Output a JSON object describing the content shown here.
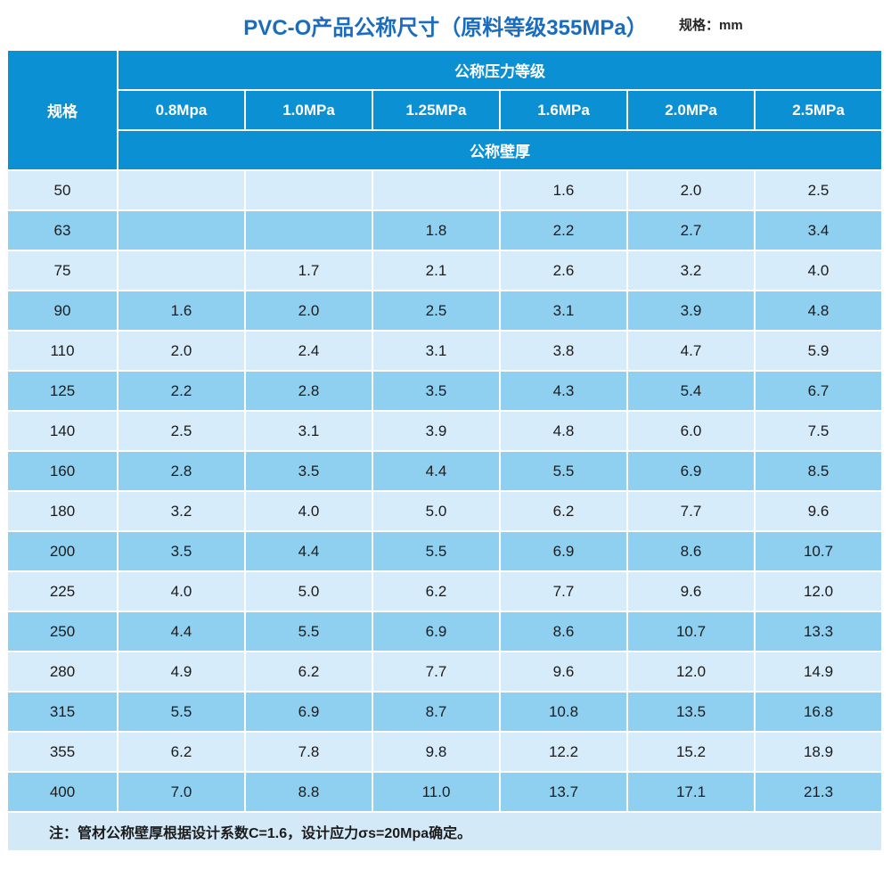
{
  "title": "PVC-O产品公称尺寸（原料等级355MPa）",
  "unit_label": "规格：mm",
  "colors": {
    "title_color": "#1a6cbe",
    "header_bg": "#0b90d4",
    "row_light": "#d7ecfb",
    "row_dark": "#8fd0f1",
    "note_bg": "#d3e9f8"
  },
  "table": {
    "spec_header": "规格",
    "pressure_group_header": "公称压力等级",
    "wall_thickness_header": "公称壁厚",
    "pressure_columns": [
      "0.8Mpa",
      "1.0MPa",
      "1.25MPa",
      "1.6MPa",
      "2.0MPa",
      "2.5MPa"
    ],
    "rows": [
      {
        "spec": "50",
        "values": [
          "",
          "",
          "",
          "1.6",
          "2.0",
          "2.5"
        ]
      },
      {
        "spec": "63",
        "values": [
          "",
          "",
          "1.8",
          "2.2",
          "2.7",
          "3.4"
        ]
      },
      {
        "spec": "75",
        "values": [
          "",
          "1.7",
          "2.1",
          "2.6",
          "3.2",
          "4.0"
        ]
      },
      {
        "spec": "90",
        "values": [
          "1.6",
          "2.0",
          "2.5",
          "3.1",
          "3.9",
          "4.8"
        ]
      },
      {
        "spec": "110",
        "values": [
          "2.0",
          "2.4",
          "3.1",
          "3.8",
          "4.7",
          "5.9"
        ]
      },
      {
        "spec": "125",
        "values": [
          "2.2",
          "2.8",
          "3.5",
          "4.3",
          "5.4",
          "6.7"
        ]
      },
      {
        "spec": "140",
        "values": [
          "2.5",
          "3.1",
          "3.9",
          "4.8",
          "6.0",
          "7.5"
        ]
      },
      {
        "spec": "160",
        "values": [
          "2.8",
          "3.5",
          "4.4",
          "5.5",
          "6.9",
          "8.5"
        ]
      },
      {
        "spec": "180",
        "values": [
          "3.2",
          "4.0",
          "5.0",
          "6.2",
          "7.7",
          "9.6"
        ]
      },
      {
        "spec": "200",
        "values": [
          "3.5",
          "4.4",
          "5.5",
          "6.9",
          "8.6",
          "10.7"
        ]
      },
      {
        "spec": "225",
        "values": [
          "4.0",
          "5.0",
          "6.2",
          "7.7",
          "9.6",
          "12.0"
        ]
      },
      {
        "spec": "250",
        "values": [
          "4.4",
          "5.5",
          "6.9",
          "8.6",
          "10.7",
          "13.3"
        ]
      },
      {
        "spec": "280",
        "values": [
          "4.9",
          "6.2",
          "7.7",
          "9.6",
          "12.0",
          "14.9"
        ]
      },
      {
        "spec": "315",
        "values": [
          "5.5",
          "6.9",
          "8.7",
          "10.8",
          "13.5",
          "16.8"
        ]
      },
      {
        "spec": "355",
        "values": [
          "6.2",
          "7.8",
          "9.8",
          "12.2",
          "15.2",
          "18.9"
        ]
      },
      {
        "spec": "400",
        "values": [
          "7.0",
          "8.8",
          "11.0",
          "13.7",
          "17.1",
          "21.3"
        ]
      }
    ],
    "note": "注：管材公称壁厚根据设计系数C=1.6，设计应力σs=20Mpa确定。"
  }
}
